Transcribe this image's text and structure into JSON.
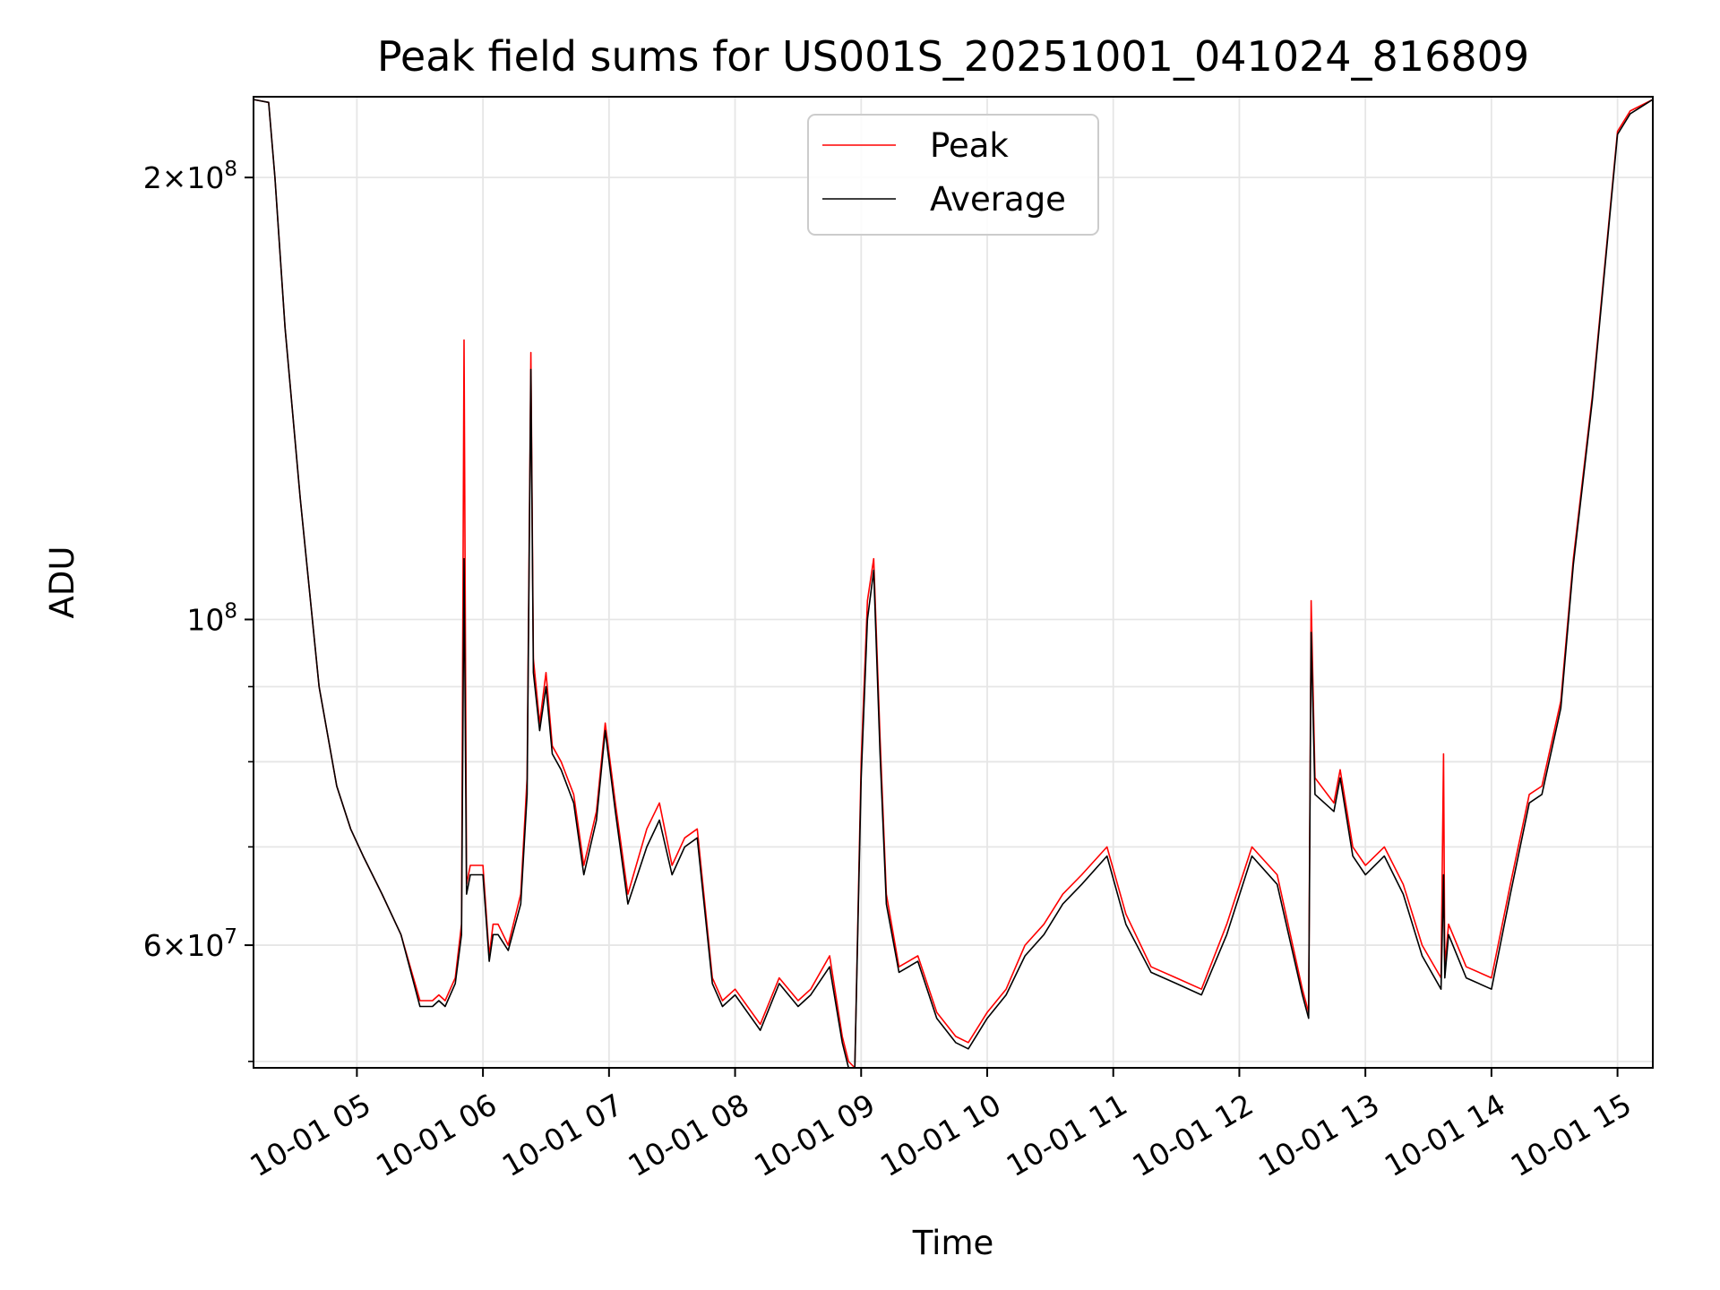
{
  "chart_data": {
    "type": "line",
    "title": "Peak field sums for US001S_20251001_041024_816809",
    "xlabel": "Time",
    "ylabel": "ADU",
    "yscale": "log",
    "ylim": [
      49500000,
      227000000
    ],
    "xlim": [
      4.18,
      15.28
    ],
    "grid": true,
    "legend_position": "top-center",
    "x_ticks": [
      {
        "value": 5,
        "label": "10-01 05"
      },
      {
        "value": 6,
        "label": "10-01 06"
      },
      {
        "value": 7,
        "label": "10-01 07"
      },
      {
        "value": 8,
        "label": "10-01 08"
      },
      {
        "value": 9,
        "label": "10-01 09"
      },
      {
        "value": 10,
        "label": "10-01 10"
      },
      {
        "value": 11,
        "label": "10-01 11"
      },
      {
        "value": 12,
        "label": "10-01 12"
      },
      {
        "value": 13,
        "label": "10-01 13"
      },
      {
        "value": 14,
        "label": "10-01 14"
      },
      {
        "value": 15,
        "label": "10-01 15"
      }
    ],
    "y_major_ticks": [
      {
        "value": 60000000,
        "mantissa": "6",
        "exponent": "7"
      },
      {
        "value": 100000000,
        "mantissa": "",
        "exponent": "8"
      },
      {
        "value": 200000000,
        "mantissa": "2",
        "exponent": "8"
      }
    ],
    "y_minor_ticks": [
      50000000,
      70000000,
      80000000,
      90000000
    ],
    "x": [
      4.18,
      4.3,
      4.35,
      4.43,
      4.55,
      4.7,
      4.84,
      4.95,
      5.05,
      5.2,
      5.35,
      5.5,
      5.6,
      5.65,
      5.7,
      5.78,
      5.83,
      5.85,
      5.87,
      5.9,
      6.0,
      6.05,
      6.08,
      6.12,
      6.2,
      6.3,
      6.35,
      6.38,
      6.4,
      6.45,
      6.5,
      6.55,
      6.62,
      6.72,
      6.8,
      6.9,
      6.97,
      7.05,
      7.15,
      7.3,
      7.4,
      7.5,
      7.6,
      7.7,
      7.82,
      7.9,
      8.0,
      8.2,
      8.35,
      8.5,
      8.6,
      8.75,
      8.85,
      8.9,
      8.95,
      9.0,
      9.05,
      9.1,
      9.15,
      9.2,
      9.3,
      9.45,
      9.6,
      9.75,
      9.85,
      10.0,
      10.15,
      10.3,
      10.45,
      10.6,
      10.75,
      10.95,
      11.1,
      11.3,
      11.5,
      11.7,
      11.9,
      12.1,
      12.3,
      12.5,
      12.55,
      12.57,
      12.6,
      12.75,
      12.8,
      12.9,
      13.0,
      13.15,
      13.3,
      13.45,
      13.6,
      13.62,
      13.63,
      13.66,
      13.8,
      14.0,
      14.15,
      14.3,
      14.4,
      14.55,
      14.65,
      14.8,
      15.0,
      15.1,
      15.28
    ],
    "series": [
      {
        "name": "Peak",
        "color": "#ff0000",
        "values": [
          226000000,
          225000000,
          200000000,
          158000000,
          121000000,
          90000000,
          77000000,
          72000000,
          69000000,
          65000000,
          61000000,
          55000000,
          55000000,
          55500000,
          55000000,
          57000000,
          62000000,
          155000000,
          66000000,
          68000000,
          68000000,
          59000000,
          62000000,
          62000000,
          60000000,
          65000000,
          78000000,
          152000000,
          94000000,
          85000000,
          92000000,
          82000000,
          80000000,
          76000000,
          68000000,
          74000000,
          85000000,
          75000000,
          65000000,
          72000000,
          75000000,
          68000000,
          71000000,
          72000000,
          57000000,
          55000000,
          56000000,
          53000000,
          57000000,
          55000000,
          56000000,
          59000000,
          52000000,
          50000000,
          49500000,
          80000000,
          103000000,
          110000000,
          83000000,
          65000000,
          58000000,
          59000000,
          54000000,
          52000000,
          51500000,
          54000000,
          56000000,
          60000000,
          62000000,
          65000000,
          67000000,
          70000000,
          63000000,
          58000000,
          57000000,
          56000000,
          62000000,
          70000000,
          67000000,
          56000000,
          54000000,
          103000000,
          78000000,
          75000000,
          79000000,
          70000000,
          68000000,
          70000000,
          66000000,
          60000000,
          57000000,
          81000000,
          58000000,
          62000000,
          58000000,
          57000000,
          66000000,
          76000000,
          77000000,
          88000000,
          110000000,
          142000000,
          215000000,
          222000000,
          226000000
        ]
      },
      {
        "name": "Average",
        "color": "#000000",
        "values": [
          226000000,
          225000000,
          200000000,
          158000000,
          121000000,
          90000000,
          77000000,
          72000000,
          69000000,
          65000000,
          61000000,
          54500000,
          54500000,
          55000000,
          54500000,
          56500000,
          61000000,
          110000000,
          65000000,
          67000000,
          67000000,
          58500000,
          61000000,
          61000000,
          59500000,
          64000000,
          76000000,
          148000000,
          92000000,
          84000000,
          90000000,
          81000000,
          79000000,
          75000000,
          67000000,
          73000000,
          84000000,
          74000000,
          64000000,
          70000000,
          73000000,
          67000000,
          70000000,
          71000000,
          56500000,
          54500000,
          55500000,
          52500000,
          56500000,
          54500000,
          55500000,
          58000000,
          51500000,
          49500000,
          49500000,
          78000000,
          100000000,
          108000000,
          81000000,
          64000000,
          57500000,
          58500000,
          53500000,
          51500000,
          51000000,
          53500000,
          55500000,
          59000000,
          61000000,
          64000000,
          66000000,
          69000000,
          62000000,
          57500000,
          56500000,
          55500000,
          61000000,
          69000000,
          66000000,
          55500000,
          53500000,
          98000000,
          76000000,
          74000000,
          78000000,
          69000000,
          67000000,
          69000000,
          65000000,
          59000000,
          56000000,
          67000000,
          57000000,
          61000000,
          57000000,
          56000000,
          65000000,
          75000000,
          76000000,
          87000000,
          109000000,
          141000000,
          214000000,
          221000000,
          226000000
        ]
      }
    ]
  }
}
